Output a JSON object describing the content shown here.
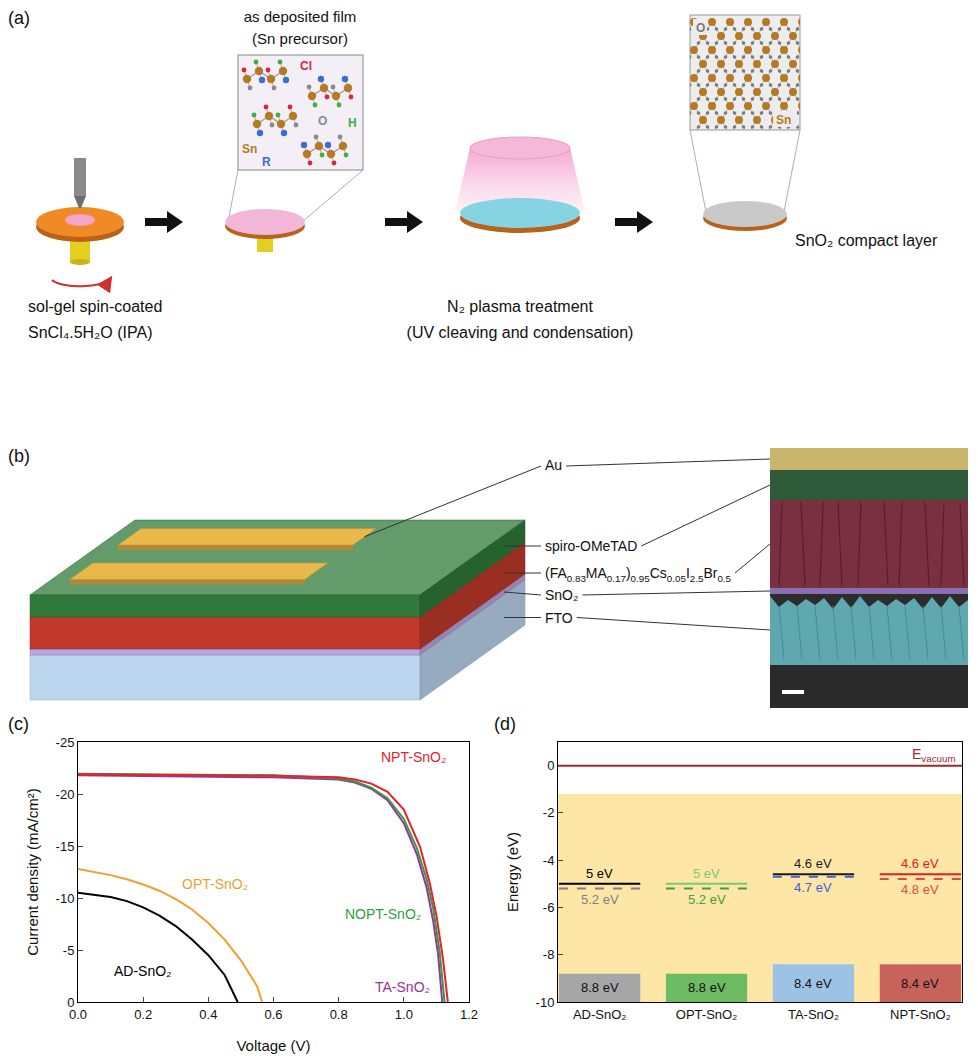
{
  "panel_a": {
    "letter": "(a)",
    "precursor_inset": {
      "title": [
        "as deposited film",
        "(Sn precursor)"
      ],
      "atoms": [
        {
          "text": "Cl",
          "color": "#d7263d"
        },
        {
          "text": "O",
          "color": "#8a8a8a"
        },
        {
          "text": "Sn",
          "color": "#b57a22"
        },
        {
          "text": "H",
          "color": "#3cb043"
        },
        {
          "text": "R",
          "color": "#3a6fd0"
        }
      ]
    },
    "steps": [
      [
        "sol-gel spin-coated",
        "SnCl₄.5H₂O (IPA)"
      ],
      [
        "N₂ plasma treatment",
        "(UV cleaving and condensation)"
      ],
      [
        "SnO₂ compact layer"
      ]
    ],
    "oxide_inset": {
      "atoms": [
        {
          "text": "O",
          "color": "#7a7a7a"
        },
        {
          "text": "Sn",
          "color": "#b57a22"
        }
      ]
    }
  },
  "panel_b": {
    "letter": "(b)",
    "layers": [
      {
        "label": [
          {
            "text": "Au"
          }
        ],
        "color": "#e8b84a"
      },
      {
        "label": [
          {
            "text": "spiro-OMeTAD"
          }
        ],
        "color": "#2f7a3a"
      },
      {
        "label": [
          {
            "text": "(FA"
          },
          {
            "sub": "0.83"
          },
          {
            "text": "MA"
          },
          {
            "sub": "0.17"
          },
          {
            "text": ")"
          },
          {
            "sub": "0.95"
          },
          {
            "text": "Cs"
          },
          {
            "sub": "0.05"
          },
          {
            "text": "I"
          },
          {
            "sub": "2.5"
          },
          {
            "text": "Br"
          },
          {
            "sub": "0.5"
          }
        ],
        "color": "#c0392b"
      },
      {
        "label": [
          {
            "text": "SnO₂"
          }
        ],
        "color": "#b9a6e0"
      },
      {
        "label": [
          {
            "text": "FTO"
          }
        ],
        "color": "#bcd6f0"
      }
    ]
  },
  "chart_data": [
    {
      "type": "line",
      "panel_label": "(c)",
      "x_label": "Voltage (V)",
      "y_label": "Current density (mA/cm²)",
      "xlim": [
        0,
        1.2
      ],
      "ylim": [
        0,
        -25
      ],
      "xticks": [
        {
          "value": 0,
          "label": "0.0"
        },
        0.2,
        0.4,
        0.6,
        0.8,
        {
          "value": 1,
          "label": "1.0"
        },
        1.2
      ],
      "yticks": [
        0,
        -5,
        -10,
        -15,
        -20,
        -25
      ],
      "grid": false,
      "series": [
        {
          "name": "AD-SnO₂",
          "color": "#000000",
          "x": [
            0,
            0.05,
            0.1,
            0.15,
            0.2,
            0.25,
            0.3,
            0.35,
            0.4,
            0.45,
            0.49
          ],
          "values": [
            -10.5,
            -10.3,
            -10.1,
            -9.7,
            -9.1,
            -8.3,
            -7.3,
            -6.0,
            -4.5,
            -2.6,
            0
          ]
        },
        {
          "name": "OPT-SnO₂",
          "color": "#f0a030",
          "x": [
            0,
            0.05,
            0.1,
            0.15,
            0.2,
            0.25,
            0.3,
            0.35,
            0.4,
            0.45,
            0.5,
            0.55,
            0.565
          ],
          "values": [
            -12.8,
            -12.5,
            -12.2,
            -11.8,
            -11.3,
            -10.7,
            -9.9,
            -8.9,
            -7.6,
            -6.0,
            -4.0,
            -1.5,
            0
          ]
        },
        {
          "name": "TA-SnO₂",
          "color": "#9b30a0",
          "x": [
            0,
            0.2,
            0.4,
            0.6,
            0.8,
            0.85,
            0.9,
            0.95,
            1.0,
            1.04,
            1.07,
            1.09,
            1.105,
            1.118
          ],
          "values": [
            -21.8,
            -21.75,
            -21.7,
            -21.6,
            -21.4,
            -21.1,
            -20.5,
            -19.4,
            -17.2,
            -14.2,
            -11.0,
            -7.8,
            -4.6,
            0
          ]
        },
        {
          "name": "NOPT-SnO₂",
          "color": "#2e9e3e",
          "x": [
            0,
            0.2,
            0.4,
            0.6,
            0.8,
            0.85,
            0.9,
            0.95,
            1.0,
            1.04,
            1.07,
            1.09,
            1.11,
            1.125
          ],
          "values": [
            -21.95,
            -21.9,
            -21.85,
            -21.8,
            -21.5,
            -21.2,
            -20.6,
            -19.6,
            -17.6,
            -14.8,
            -11.8,
            -9.0,
            -4.8,
            0
          ]
        },
        {
          "name": "NPT-SnO₂",
          "color": "#e8202a",
          "x": [
            0,
            0.2,
            0.4,
            0.6,
            0.8,
            0.85,
            0.9,
            0.95,
            1.0,
            1.05,
            1.08,
            1.1,
            1.12,
            1.135
          ],
          "values": [
            -21.9,
            -21.85,
            -21.8,
            -21.75,
            -21.6,
            -21.4,
            -21.0,
            -20.2,
            -18.5,
            -14.9,
            -11.4,
            -8.3,
            -4.2,
            0
          ]
        }
      ]
    },
    {
      "type": "energy_levels",
      "panel_label": "(d)",
      "y_label": "Energy (eV)",
      "ylim": [
        -10,
        1
      ],
      "yticks": [
        -10,
        -8,
        -6,
        -4,
        -2,
        0
      ],
      "grid": false,
      "categories": [
        "AD-SnO₂",
        "OPT-SnO₂",
        "TA-SnO₂",
        "NPT-SnO₂"
      ],
      "vacuum_level": 0,
      "vacuum_label": {
        "text": "E",
        "subscript": "vacuum"
      },
      "vacuum_color": "#a0282a",
      "shaded_range": [
        -10,
        -1.2
      ],
      "shaded_color": "#fde6a6",
      "levels": [
        {
          "line_style": "solid",
          "values": [
            5,
            5,
            4.6,
            4.6
          ],
          "value_labels": [
            "5 eV",
            "5 eV",
            "4.6 eV",
            "4.6 eV"
          ],
          "colors": [
            "#000000",
            "#7cc96f",
            "#1a1a1a",
            "#e02020"
          ]
        },
        {
          "line_style": "dashed",
          "values": [
            5.2,
            5.2,
            4.7,
            4.8
          ],
          "value_labels": [
            "5.2 eV",
            "5.2 eV",
            "4.7 eV",
            "4.8 eV"
          ],
          "colors": [
            "#808080",
            "#3f9f45",
            "#4a5bd4",
            "#e24b4b"
          ]
        }
      ],
      "bands": {
        "values": [
          8.8,
          8.8,
          8.4,
          8.4
        ],
        "value_labels": [
          "8.8 eV",
          "8.8 eV",
          "8.4 eV",
          "8.4 eV"
        ],
        "colors": [
          "#a6a6a6",
          "#6dbb63",
          "#9cc3e6",
          "#c8635c"
        ]
      }
    }
  ]
}
